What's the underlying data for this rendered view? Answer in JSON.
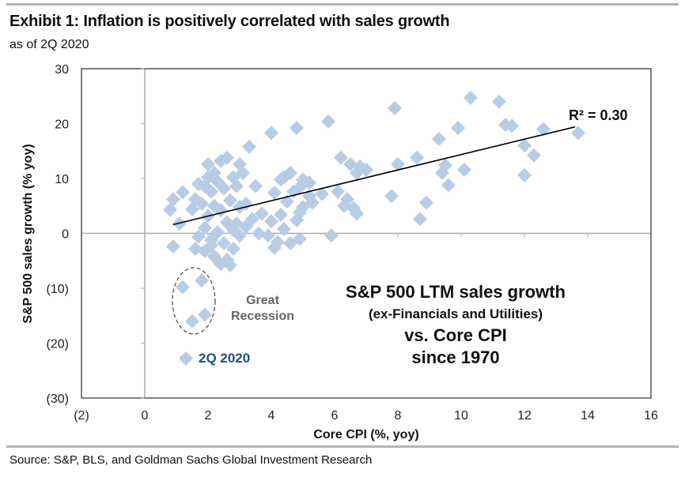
{
  "header": {
    "title": "Exhibit 1: Inflation is positively correlated with sales growth",
    "subtitle": "as of 2Q 2020"
  },
  "footer": {
    "source": "Source: S&P, BLS, and Goldman Sachs Global Investment Research"
  },
  "colors": {
    "marker": "#b8cce4",
    "highlight_text": "#1f4e79",
    "trendline": "#000000",
    "axis_line": "#aaaaaa",
    "frame": "#555555",
    "circle": "#555555",
    "gray_text": "#666666"
  },
  "chart_data": {
    "type": "scatter",
    "title": "Exhibit 1: Inflation is positively correlated with sales growth",
    "subtitle": "as of 2Q 2020",
    "xlabel": "Core CPI (%, yoy)",
    "ylabel": "S&P 500 sales growth (% yoy)",
    "xlim": [
      -2,
      16
    ],
    "ylim": [
      -30,
      30
    ],
    "x_ticks": [
      -2,
      0,
      2,
      4,
      6,
      8,
      10,
      12,
      14,
      16
    ],
    "x_tick_labels": [
      "(2)",
      "0",
      "2",
      "4",
      "6",
      "8",
      "10",
      "12",
      "14",
      "16"
    ],
    "y_ticks": [
      30,
      20,
      10,
      0,
      -10,
      -20,
      -30
    ],
    "y_tick_labels": [
      "30",
      "20",
      "10",
      "0",
      "(10)",
      "(20)",
      "(30)"
    ],
    "grid": false,
    "series": [
      {
        "name": "S&P 500 LTM sales growth vs. Core CPI",
        "marker": "diamond",
        "points": [
          [
            0.9,
            6.2
          ],
          [
            1.2,
            7.5
          ],
          [
            0.8,
            4.3
          ],
          [
            0.9,
            -2.4
          ],
          [
            1.1,
            1.8
          ],
          [
            2.0,
            12.6
          ],
          [
            2.4,
            13.2
          ],
          [
            2.2,
            11.0
          ],
          [
            2.6,
            13.8
          ],
          [
            2.0,
            10.2
          ],
          [
            1.9,
            8.6
          ],
          [
            2.3,
            9.4
          ],
          [
            2.8,
            10.2
          ],
          [
            1.7,
            9.0
          ],
          [
            2.5,
            8.2
          ],
          [
            2.1,
            7.6
          ],
          [
            2.9,
            8.6
          ],
          [
            3.1,
            11.0
          ],
          [
            3.0,
            12.6
          ],
          [
            3.3,
            15.8
          ],
          [
            3.5,
            8.6
          ],
          [
            1.6,
            6.2
          ],
          [
            1.8,
            5.4
          ],
          [
            2.2,
            5.0
          ],
          [
            2.7,
            6.0
          ],
          [
            3.0,
            4.8
          ],
          [
            3.2,
            5.4
          ],
          [
            2.4,
            4.2
          ],
          [
            2.0,
            3.2
          ],
          [
            1.5,
            4.4
          ],
          [
            2.6,
            2.0
          ],
          [
            2.9,
            1.8
          ],
          [
            3.4,
            2.6
          ],
          [
            3.7,
            3.6
          ],
          [
            1.9,
            1.0
          ],
          [
            2.3,
            0.2
          ],
          [
            2.8,
            0.6
          ],
          [
            3.2,
            1.2
          ],
          [
            1.7,
            -0.6
          ],
          [
            2.1,
            -1.2
          ],
          [
            2.5,
            -1.8
          ],
          [
            3.0,
            -0.4
          ],
          [
            1.9,
            -3.2
          ],
          [
            2.2,
            -4.2
          ],
          [
            2.6,
            -4.8
          ],
          [
            2.1,
            -2.2
          ],
          [
            2.8,
            -2.8
          ],
          [
            2.4,
            -5.6
          ],
          [
            2.7,
            -5.8
          ],
          [
            1.6,
            -2.8
          ],
          [
            3.6,
            0.0
          ],
          [
            4.0,
            2.2
          ],
          [
            4.3,
            3.4
          ],
          [
            4.8,
            2.4
          ],
          [
            3.9,
            -0.4
          ],
          [
            4.2,
            -1.6
          ],
          [
            4.6,
            -1.8
          ],
          [
            4.9,
            -1.0
          ],
          [
            4.1,
            -2.6
          ],
          [
            4.4,
            0.8
          ],
          [
            4.5,
            5.8
          ],
          [
            4.7,
            7.6
          ],
          [
            4.3,
            9.8
          ],
          [
            4.6,
            11.0
          ],
          [
            4.4,
            10.2
          ],
          [
            4.9,
            8.4
          ],
          [
            5.2,
            6.8
          ],
          [
            5.0,
            4.8
          ],
          [
            5.3,
            5.6
          ],
          [
            5.6,
            7.2
          ],
          [
            4.1,
            7.4
          ],
          [
            5.0,
            9.8
          ],
          [
            5.2,
            9.2
          ],
          [
            5.9,
            -0.4
          ],
          [
            4.9,
            3.8
          ],
          [
            4.0,
            18.3
          ],
          [
            4.8,
            19.2
          ],
          [
            5.8,
            20.4
          ],
          [
            6.2,
            13.8
          ],
          [
            6.5,
            12.6
          ],
          [
            6.8,
            12.2
          ],
          [
            7.0,
            11.6
          ],
          [
            6.7,
            11.0
          ],
          [
            6.1,
            7.6
          ],
          [
            6.4,
            6.2
          ],
          [
            6.6,
            4.6
          ],
          [
            6.3,
            5.0
          ],
          [
            6.7,
            3.6
          ],
          [
            7.8,
            6.8
          ],
          [
            8.0,
            12.6
          ],
          [
            7.9,
            22.8
          ],
          [
            8.6,
            13.8
          ],
          [
            8.7,
            2.6
          ],
          [
            8.9,
            5.6
          ],
          [
            9.3,
            17.2
          ],
          [
            9.4,
            11.0
          ],
          [
            9.6,
            8.8
          ],
          [
            9.5,
            12.4
          ],
          [
            9.9,
            19.2
          ],
          [
            10.1,
            11.6
          ],
          [
            10.3,
            24.7
          ],
          [
            11.2,
            24.0
          ],
          [
            11.4,
            19.8
          ],
          [
            11.6,
            19.6
          ],
          [
            12.0,
            10.6
          ],
          [
            12.0,
            16.0
          ],
          [
            12.3,
            14.2
          ],
          [
            12.6,
            19.0
          ],
          [
            13.7,
            18.3
          ]
        ]
      }
    ],
    "recession_points": [
      [
        1.2,
        -9.8
      ],
      [
        1.8,
        -8.6
      ],
      [
        1.5,
        -16.0
      ],
      [
        1.9,
        -14.8
      ]
    ],
    "highlight_point": {
      "label": "2Q 2020",
      "x": 1.3,
      "y": -22.8
    },
    "trendline": {
      "x_start": 0.9,
      "y_start": 1.6,
      "x_end": 13.6,
      "y_end": 19.4,
      "r_squared": 0.3,
      "label": "R² = 0.30"
    },
    "annotations": {
      "circle_label_line1": "Great",
      "circle_label_line2": "Recession",
      "center_line1": "S&P 500 LTM sales growth",
      "center_line2": "(ex-Financials and Utilities)",
      "center_line3": "vs. Core CPI",
      "center_line4": "since 1970",
      "legend_label": "2Q 2020"
    },
    "legend": "bottom-left"
  }
}
